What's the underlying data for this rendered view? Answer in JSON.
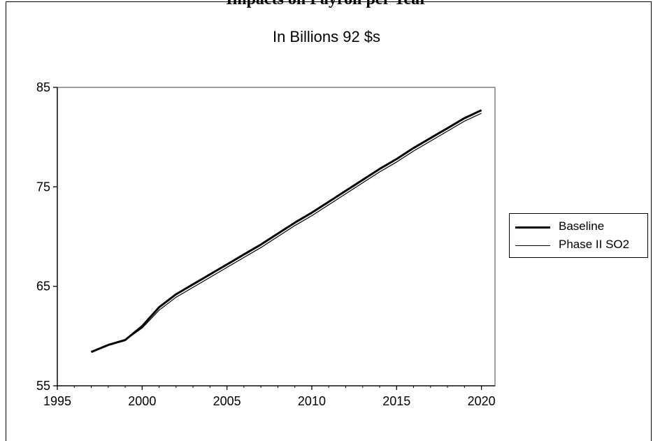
{
  "header": {
    "top_title": "Impacts on Payroll per Year"
  },
  "chart_data": {
    "type": "line",
    "title": "In Billions 92 $s",
    "xlabel": "",
    "ylabel": "",
    "xlim": [
      1995,
      2020.8
    ],
    "ylim": [
      55,
      85
    ],
    "x_ticks": [
      1995,
      2000,
      2005,
      2010,
      2015,
      2020
    ],
    "y_ticks": [
      55,
      65,
      75,
      85
    ],
    "legend_position": "right",
    "series": [
      {
        "name": "Baseline",
        "color": "#000000",
        "stroke": "thick",
        "x": [
          1997,
          1998,
          1999,
          2000,
          2001,
          2002,
          2003,
          2004,
          2005,
          2006,
          2007,
          2008,
          2009,
          2010,
          2011,
          2012,
          2013,
          2014,
          2015,
          2016,
          2017,
          2018,
          2019,
          2020
        ],
        "values": [
          58.4,
          59.1,
          59.6,
          61.0,
          62.9,
          64.2,
          65.2,
          66.2,
          67.2,
          68.2,
          69.2,
          70.3,
          71.4,
          72.4,
          73.5,
          74.6,
          75.7,
          76.8,
          77.8,
          78.9,
          79.9,
          80.9,
          81.9,
          82.7
        ]
      },
      {
        "name": "Phase II SO2",
        "color": "#000000",
        "stroke": "thin",
        "x": [
          1997,
          1998,
          1999,
          2000,
          2001,
          2002,
          2003,
          2004,
          2005,
          2006,
          2007,
          2008,
          2009,
          2010,
          2011,
          2012,
          2013,
          2014,
          2015,
          2016,
          2017,
          2018,
          2019,
          2020
        ],
        "values": [
          58.4,
          59.1,
          59.6,
          60.8,
          62.6,
          63.9,
          64.9,
          65.9,
          66.9,
          67.9,
          68.9,
          70.0,
          71.1,
          72.1,
          73.2,
          74.3,
          75.4,
          76.5,
          77.5,
          78.6,
          79.6,
          80.6,
          81.6,
          82.4
        ]
      }
    ]
  }
}
